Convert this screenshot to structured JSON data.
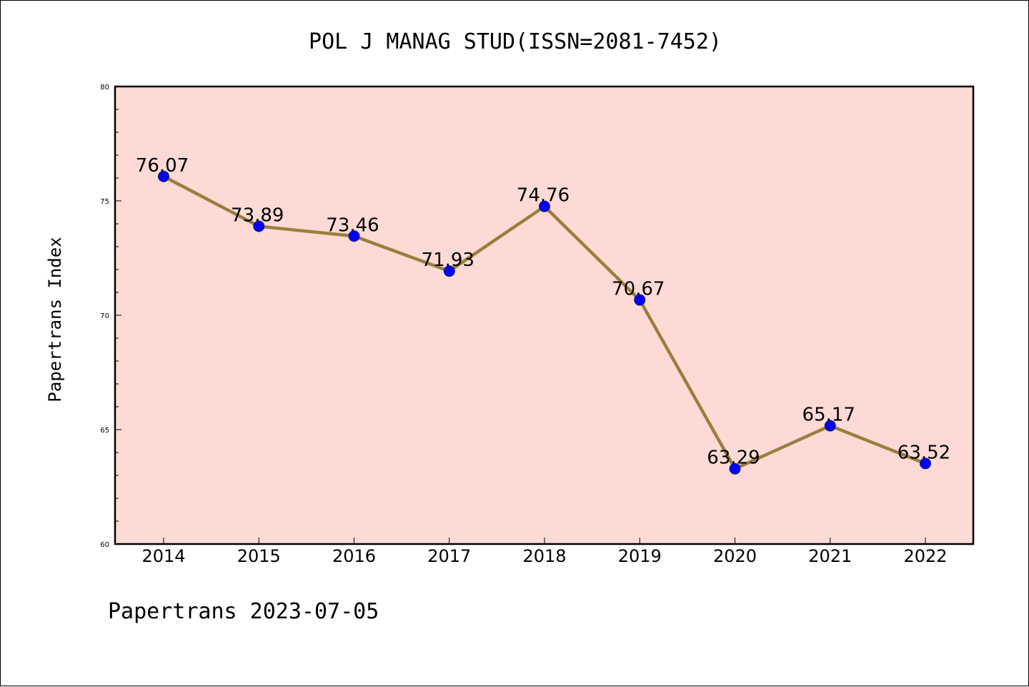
{
  "chart_data": {
    "type": "line",
    "title": "POL J MANAG STUD(ISSN=2081-7452)",
    "xlabel": "",
    "ylabel": "Papertrans Index",
    "footer": "Papertrans 2023-07-05",
    "categories": [
      "2014",
      "2015",
      "2016",
      "2017",
      "2018",
      "2019",
      "2020",
      "2021",
      "2022"
    ],
    "values": [
      76.07,
      73.89,
      73.46,
      71.93,
      74.76,
      70.67,
      63.29,
      65.17,
      63.52
    ],
    "value_labels": [
      "76.07",
      "73.89",
      "73.46",
      "71.93",
      "74.76",
      "70.67",
      "63.29",
      "65.17",
      "63.52"
    ],
    "ylim": [
      60,
      80
    ],
    "yticks": [
      "60",
      "65",
      "70",
      "75",
      "80"
    ],
    "grid": false,
    "colors": {
      "plot_background": "#fddad6",
      "line": "#9a7f3c",
      "marker": "#0000ff",
      "marker_edge": "#1a1a66"
    }
  }
}
